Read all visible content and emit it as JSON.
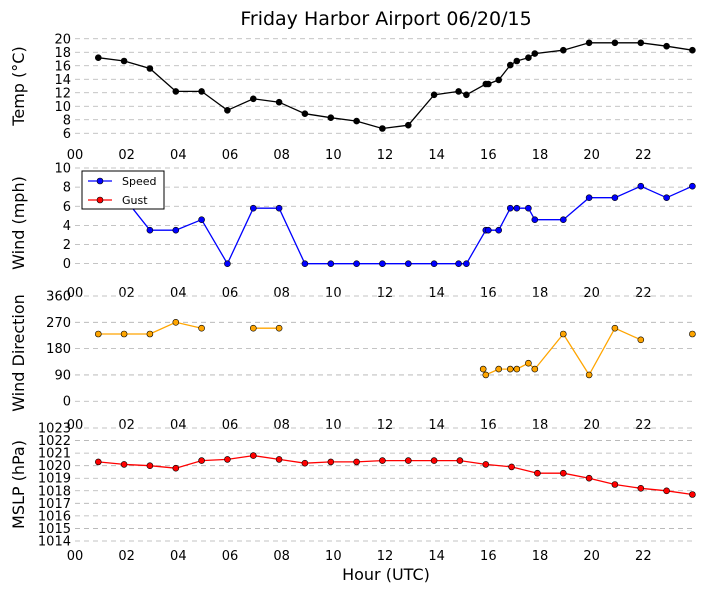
{
  "chart_data": {
    "type": "line",
    "title": "Friday Harbor Airport 06/20/15",
    "xlabel": "Hour (UTC)",
    "x_tick_labels": [
      "00",
      "02",
      "04",
      "06",
      "08",
      "10",
      "12",
      "14",
      "16",
      "18",
      "20",
      "22"
    ],
    "xlim": [
      0,
      24
    ],
    "grid": "horizontal dashed",
    "panels": [
      {
        "ylabel": "Temp ($^\\circ$C)",
        "ylabel_display": "Temp (°C)",
        "ylim": [
          5,
          21
        ],
        "yticks": [
          6,
          8,
          10,
          12,
          14,
          16,
          18,
          20
        ],
        "series": [
          {
            "color": "#000000",
            "x": [
              0.9,
              1.9,
              2.9,
              3.9,
              4.9,
              5.9,
              6.9,
              7.9,
              8.9,
              9.9,
              10.9,
              11.9,
              12.9,
              13.9,
              14.85,
              15.15,
              15.9,
              16.0,
              16.4,
              16.85,
              17.1,
              17.55,
              17.8,
              18.9,
              19.9,
              20.9,
              21.9,
              22.9,
              23.9
            ],
            "y": [
              17.2,
              16.7,
              15.6,
              12.2,
              12.2,
              9.4,
              11.1,
              10.6,
              8.9,
              8.3,
              7.8,
              6.7,
              7.2,
              11.7,
              12.2,
              11.7,
              13.3,
              13.3,
              13.9,
              16.1,
              16.7,
              17.2,
              17.8,
              18.3,
              19.4,
              19.4,
              19.4,
              18.9,
              18.3
            ]
          }
        ]
      },
      {
        "ylabel": "Wind (mph)",
        "ylim": [
          -1.5,
          10
        ],
        "yticks": [
          0,
          2,
          4,
          6,
          8,
          10
        ],
        "legend": "upper-left",
        "series": [
          {
            "name": "Speed",
            "color": "#0000ff",
            "x": [
              0.9,
              1.9,
              2.9,
              3.9,
              4.9,
              5.9,
              6.9,
              7.9,
              8.9,
              9.9,
              10.9,
              11.9,
              12.9,
              13.9,
              14.85,
              15.15,
              15.9,
              16.0,
              16.4,
              16.85,
              17.1,
              17.55,
              17.8,
              18.9,
              19.9,
              20.9,
              21.9,
              22.9,
              23.9
            ],
            "y": [
              6.9,
              6.9,
              3.5,
              3.5,
              4.6,
              0,
              5.8,
              5.8,
              0,
              0,
              0,
              0,
              0,
              0,
              0,
              0,
              3.5,
              3.5,
              3.5,
              5.8,
              5.8,
              5.8,
              4.6,
              4.6,
              6.9,
              6.9,
              8.1,
              6.9,
              8.1
            ]
          },
          {
            "name": "Gust",
            "color": "#ff0000",
            "x": [],
            "y": []
          }
        ]
      },
      {
        "ylabel": "Wind Direction",
        "ylim": [
          -30,
          360
        ],
        "yticks": [
          0,
          90,
          180,
          270,
          360
        ],
        "series": [
          {
            "color": "#ffa500",
            "x": [
              0.9,
              1.9,
              2.9,
              3.9,
              4.9,
              null,
              6.9,
              7.9,
              null,
              15.8,
              15.9,
              16.4,
              16.85,
              17.1,
              17.55,
              17.8,
              18.9,
              19.9,
              20.9,
              21.9,
              null,
              23.9
            ],
            "y": [
              230,
              230,
              230,
              270,
              250,
              null,
              250,
              250,
              null,
              110,
              90,
              110,
              110,
              110,
              130,
              110,
              230,
              90,
              250,
              210,
              null,
              230
            ]
          }
        ]
      },
      {
        "ylabel": "MSLP (hPa)",
        "ylim": [
          1014,
          1023
        ],
        "yticks": [
          1014,
          1015,
          1016,
          1017,
          1018,
          1019,
          1020,
          1021,
          1022,
          1023
        ],
        "series": [
          {
            "color": "#ff0000",
            "x": [
              0.9,
              1.9,
              2.9,
              3.9,
              4.9,
              5.9,
              6.9,
              7.9,
              8.9,
              9.9,
              10.9,
              11.9,
              12.9,
              13.9,
              14.9,
              15.9,
              16.9,
              17.9,
              18.9,
              19.9,
              20.9,
              21.9,
              22.9,
              23.9
            ],
            "y": [
              1020.3,
              1020.1,
              1020.0,
              1019.8,
              1020.4,
              1020.5,
              1020.8,
              1020.5,
              1020.2,
              1020.3,
              1020.3,
              1020.4,
              1020.4,
              1020.4,
              1020.4,
              1020.1,
              1019.9,
              1019.4,
              1019.4,
              1019.0,
              1018.5,
              1018.2,
              1018.0,
              1017.7
            ]
          }
        ]
      }
    ]
  }
}
